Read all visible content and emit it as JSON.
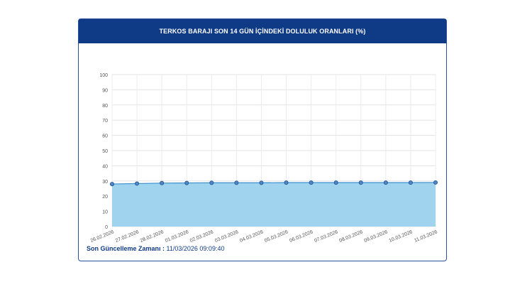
{
  "header": {
    "title": "TERKOS BARAJI SON 14 GÜN İÇİNDEKİ DOLULUK ORANLARI (%)"
  },
  "footer": {
    "label": "Son Güncelleme Zamanı :",
    "value": "11/03/2026 09:09:40"
  },
  "colors": {
    "header_bg": "#0f3a86",
    "area_fill": "#9fd3ee",
    "line": "#3a8fce",
    "marker_fill": "#4f86c6",
    "marker_stroke": "#1f4f8f"
  },
  "chart_data": {
    "type": "area",
    "title": "TERKOS BARAJI SON 14 GÜN İÇİNDEKİ DOLULUK ORANLARI (%)",
    "xlabel": "",
    "ylabel": "",
    "ylim": [
      0,
      100
    ],
    "yticks": [
      0,
      10,
      20,
      30,
      40,
      50,
      60,
      70,
      80,
      90,
      100
    ],
    "grid": true,
    "legend": "none",
    "categories": [
      "26.02.2026",
      "27.02.2026",
      "28.02.2026",
      "01.03.2026",
      "02.03.2026",
      "03.03.2026",
      "04.03.2026",
      "05.03.2026",
      "06.03.2026",
      "07.03.2026",
      "08.03.2026",
      "09.03.2026",
      "10.03.2026",
      "11.03.2026"
    ],
    "series": [
      {
        "values": [
          28.0,
          28.3,
          28.6,
          28.7,
          28.8,
          28.8,
          28.8,
          28.9,
          28.9,
          28.9,
          28.9,
          28.9,
          28.9,
          29.0
        ]
      }
    ]
  }
}
